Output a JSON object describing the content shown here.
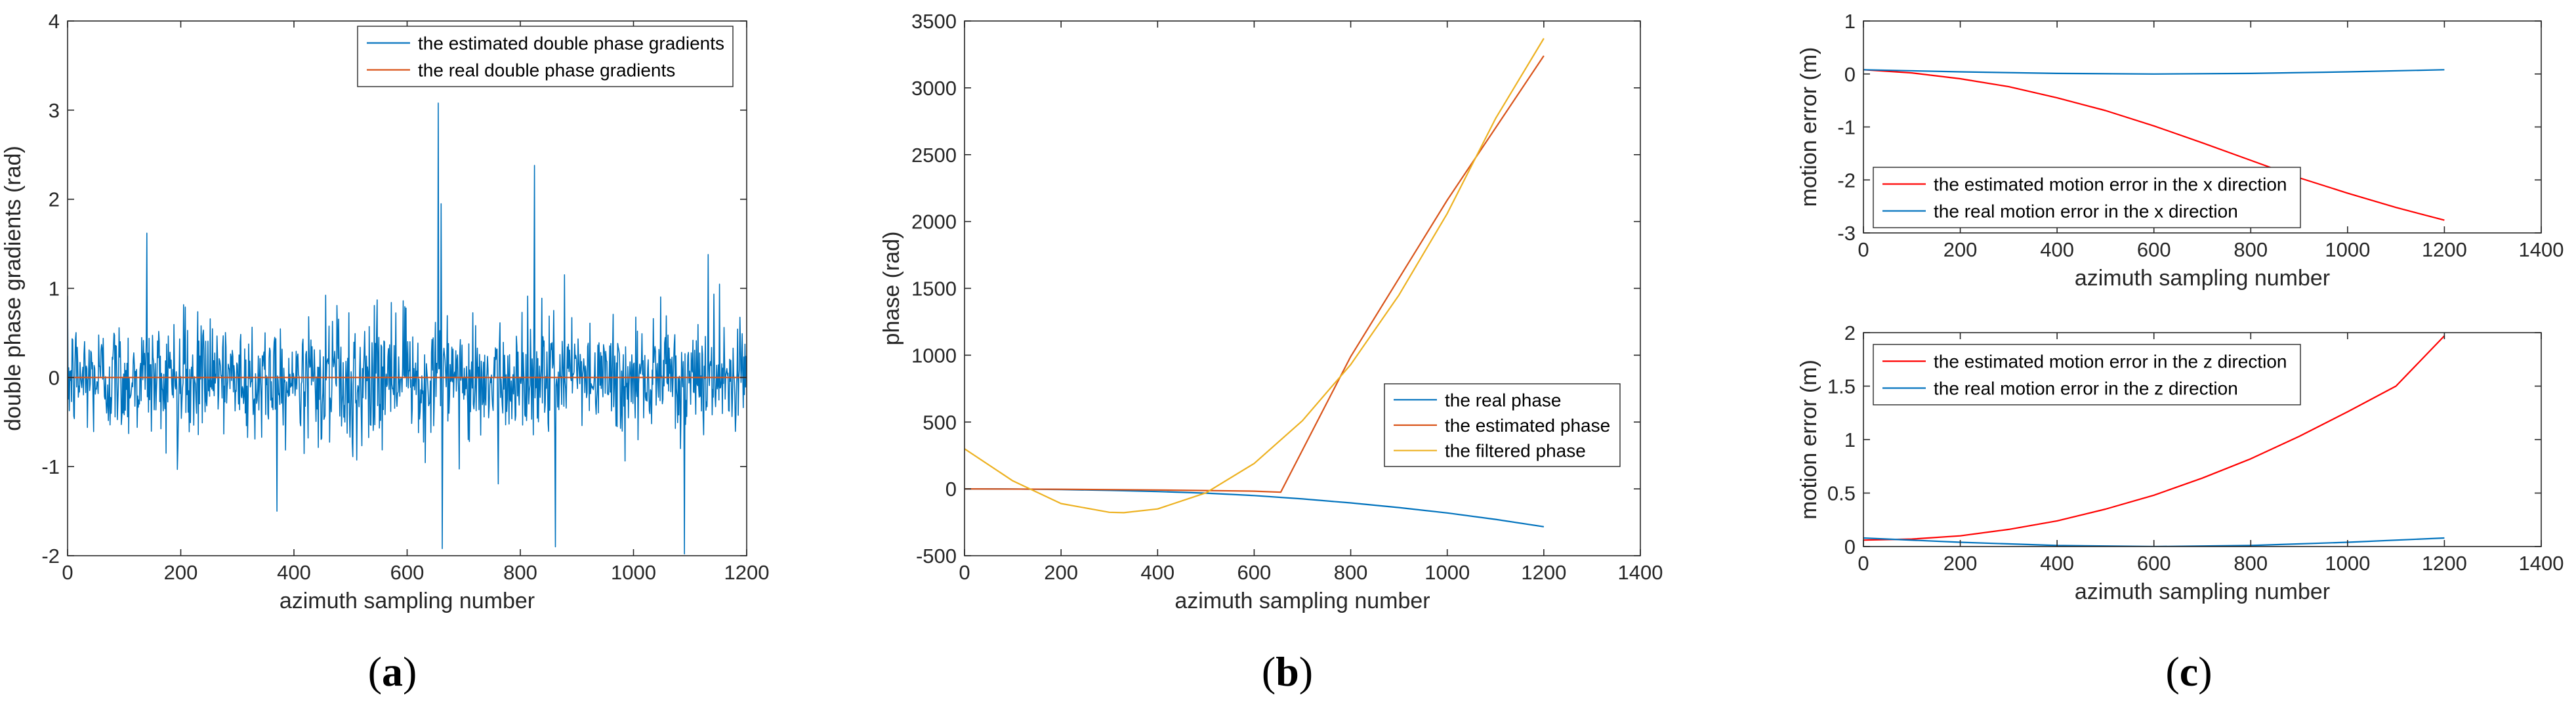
{
  "chart_data": [
    {
      "type": "line",
      "panel_label": "(a)",
      "panel_letter": "a",
      "xlabel": "azimuth sampling number",
      "ylabel": "double phase gradients (rad)",
      "xlim": [
        0,
        1200
      ],
      "ylim": [
        -2,
        4
      ],
      "xticks": [
        0,
        200,
        400,
        600,
        800,
        1000,
        1200
      ],
      "yticks": [
        -2,
        -1,
        0,
        1,
        2,
        3,
        4
      ],
      "grid": false,
      "legend_position": "top-right",
      "series": [
        {
          "name": "the estimated double phase gradients",
          "color": "#0072BD",
          "kind": "noise",
          "std": 0.33,
          "n": 1200,
          "spikes": [
            [
              140,
              1.62
            ],
            [
              370,
              -1.5
            ],
            [
              655,
              3.08
            ],
            [
              660,
              1.95
            ],
            [
              662,
              -1.92
            ],
            [
              825,
              2.38
            ],
            [
              862,
              -1.9
            ],
            [
              1090,
              -1.98
            ],
            [
              1132,
              1.38
            ]
          ]
        },
        {
          "name": "the real double phase gradients",
          "color": "#D95319",
          "x": [
            0,
            1200
          ],
          "y": [
            0,
            0
          ]
        }
      ]
    },
    {
      "type": "line",
      "panel_label": "(b)",
      "panel_letter": "b",
      "xlabel": "azimuth sampling number",
      "ylabel": "phase (rad)",
      "xlim": [
        0,
        1400
      ],
      "ylim": [
        -500,
        3500
      ],
      "xticks": [
        0,
        200,
        400,
        600,
        800,
        1000,
        1200,
        1400
      ],
      "yticks": [
        -500,
        0,
        500,
        1000,
        1500,
        2000,
        2500,
        3000,
        3500
      ],
      "grid": false,
      "legend_position": "lower-right",
      "series": [
        {
          "name": "the real phase",
          "color": "#0072BD",
          "x": [
            0,
            100,
            200,
            300,
            400,
            500,
            600,
            700,
            800,
            900,
            1000,
            1100,
            1200
          ],
          "y": [
            0,
            -1,
            -5,
            -11,
            -20,
            -32,
            -50,
            -75,
            -105,
            -140,
            -180,
            -228,
            -283
          ]
        },
        {
          "name": "the estimated phase",
          "color": "#D95319",
          "x": [
            0,
            200,
            400,
            600,
            655,
            800,
            1000,
            1200
          ],
          "y": [
            0,
            -3,
            -8,
            -17,
            -25,
            990,
            2160,
            3240
          ]
        },
        {
          "name": "the filtered phase",
          "color": "#EDB120",
          "x": [
            0,
            100,
            200,
            300,
            330,
            400,
            500,
            600,
            700,
            800,
            900,
            1000,
            1100,
            1200
          ],
          "y": [
            300,
            60,
            -110,
            -175,
            -178,
            -150,
            -30,
            190,
            510,
            930,
            1450,
            2060,
            2770,
            3370
          ]
        }
      ]
    },
    {
      "type": "line",
      "panel_label": "(c)",
      "panel_letter": "c",
      "xlabel": "azimuth sampling number",
      "ylabel": "motion error (m)",
      "xlim": [
        0,
        1400
      ],
      "ylim": [
        -3,
        1
      ],
      "xticks": [
        0,
        200,
        400,
        600,
        800,
        1000,
        1200,
        1400
      ],
      "yticks": [
        -3,
        -2,
        -1,
        0,
        1
      ],
      "grid": false,
      "legend_position": "lower-left",
      "series": [
        {
          "name": "the estimated motion error in the x direction",
          "color": "#FF0000",
          "x": [
            0,
            100,
            200,
            300,
            400,
            500,
            600,
            700,
            800,
            900,
            1000,
            1100,
            1200
          ],
          "y": [
            0.08,
            0.02,
            -0.09,
            -0.24,
            -0.45,
            -0.69,
            -0.98,
            -1.3,
            -1.63,
            -1.96,
            -2.25,
            -2.52,
            -2.76
          ]
        },
        {
          "name": "the real motion error in the x direction",
          "color": "#0072BD",
          "x": [
            0,
            200,
            400,
            600,
            800,
            1000,
            1200
          ],
          "y": [
            0.08,
            0.04,
            0.01,
            0,
            0.01,
            0.04,
            0.08
          ]
        }
      ]
    },
    {
      "type": "line",
      "xlabel": "azimuth sampling number",
      "ylabel": "motion error (m)",
      "xlim": [
        0,
        1400
      ],
      "ylim": [
        0,
        2
      ],
      "xticks": [
        0,
        200,
        400,
        600,
        800,
        1000,
        1200,
        1400
      ],
      "yticks": [
        0,
        0.5,
        1,
        1.5,
        2
      ],
      "grid": false,
      "legend_position": "top-left",
      "series": [
        {
          "name": "the estimated motion error in the z direction",
          "color": "#FF0000",
          "x": [
            0,
            100,
            200,
            300,
            400,
            500,
            600,
            700,
            800,
            900,
            1000,
            1100,
            1200
          ],
          "y": [
            0.06,
            0.07,
            0.1,
            0.16,
            0.24,
            0.35,
            0.48,
            0.64,
            0.82,
            1.03,
            1.26,
            1.5,
            1.97
          ]
        },
        {
          "name": "the real motion error in the z direction",
          "color": "#0072BD",
          "x": [
            0,
            200,
            400,
            600,
            800,
            1000,
            1200
          ],
          "y": [
            0.08,
            0.04,
            0.01,
            0,
            0.01,
            0.04,
            0.08
          ]
        }
      ]
    }
  ]
}
